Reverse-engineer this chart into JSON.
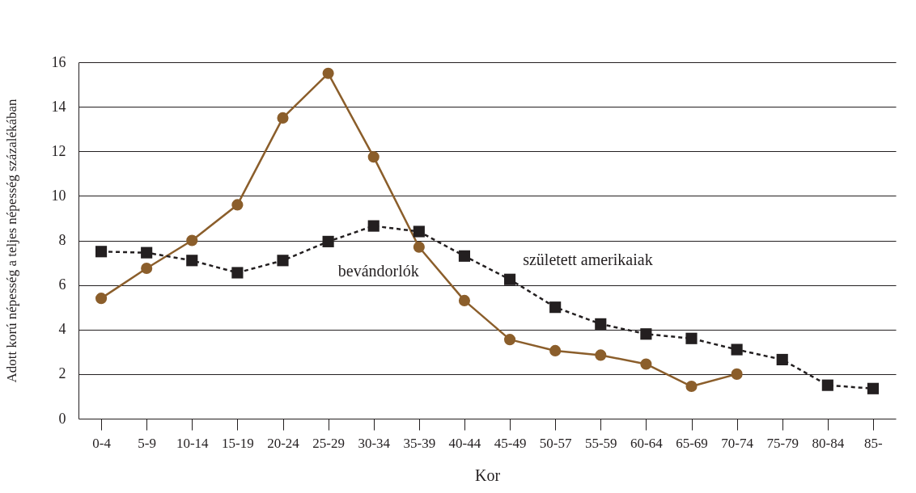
{
  "chart_data": {
    "type": "line",
    "xlabel": "Kor",
    "ylabel": "Adott korú népesség a teljes népesség százalékában",
    "categories": [
      "0-4",
      "5-9",
      "10-14",
      "15-19",
      "20-24",
      "25-29",
      "30-34",
      "35-39",
      "40-44",
      "45-49",
      "50-57",
      "55-59",
      "60-64",
      "65-69",
      "70-74",
      "75-79",
      "80-84",
      "85-"
    ],
    "series": [
      {
        "name": "bevándorlók",
        "color": "#8b5e2b",
        "marker": "circle",
        "line_style": "solid",
        "values": [
          5.4,
          6.75,
          8.0,
          9.6,
          13.5,
          15.5,
          11.75,
          7.7,
          5.3,
          3.55,
          3.05,
          2.85,
          2.45,
          1.45,
          2.0,
          null,
          null,
          null
        ]
      },
      {
        "name": "született amerikaiak",
        "color": "#231f20",
        "marker": "square",
        "line_style": "dashed",
        "values": [
          7.5,
          7.45,
          7.1,
          6.55,
          7.1,
          7.95,
          8.65,
          8.4,
          7.3,
          6.25,
          5.0,
          4.25,
          3.8,
          3.6,
          3.1,
          2.65,
          1.5,
          1.35
        ]
      }
    ],
    "ylim": [
      0,
      16
    ],
    "yticks": [
      0,
      2,
      4,
      6,
      8,
      10,
      12,
      14,
      16
    ],
    "grid": "y",
    "legend": false
  }
}
